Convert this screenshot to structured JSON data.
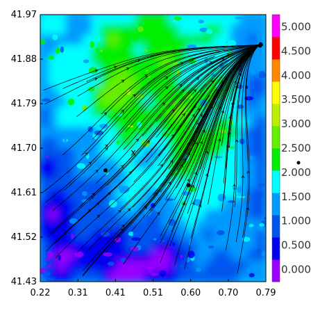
{
  "chart_data": {
    "type": "heatmap",
    "subtype": "vector-field-streamlines",
    "title": "",
    "xlabel": "",
    "ylabel": "",
    "xlim": [
      0.22,
      0.79
    ],
    "ylim": [
      41.43,
      41.97
    ],
    "x_ticks": [
      "0.22",
      "0.31",
      "0.41",
      "0.51",
      "0.60",
      "0.70",
      "0.79"
    ],
    "y_ticks": [
      "41.43",
      "41.52",
      "41.61",
      "41.70",
      "41.79",
      "41.88",
      "41.97"
    ],
    "x_tick_values": [
      0.22,
      0.315,
      0.41,
      0.505,
      0.6,
      0.695,
      0.79
    ],
    "y_tick_values": [
      41.43,
      41.52,
      41.61,
      41.7,
      41.79,
      41.88,
      41.97
    ],
    "colorbar": {
      "labels": [
        "0.000",
        "0.500",
        "1.000",
        "1.500",
        "2.000",
        "2.500",
        "3.000",
        "3.500",
        "4.000",
        "4.500",
        "5.000"
      ],
      "values": [
        0.0,
        0.5,
        1.0,
        1.5,
        2.0,
        2.5,
        3.0,
        3.5,
        4.0,
        4.5,
        5.0
      ],
      "range": [
        -0.25,
        5.25
      ],
      "colors": [
        "#9900ff",
        "#0000ee",
        "#0055ee",
        "#0099ff",
        "#00ffff",
        "#00ee00",
        "#66ee00",
        "#bbee00",
        "#ffff00",
        "#ff8800",
        "#ff0000",
        "#ff00ff"
      ]
    },
    "markers": [
      {
        "x": 0.385,
        "y": 41.655
      },
      {
        "x": 0.595,
        "y": 41.625
      }
    ],
    "annotations": [
      {
        "text": "x",
        "x": 0.455,
        "y": 41.685
      }
    ],
    "colorbar_marker": {
      "value": 2.2
    },
    "grid": false,
    "legend": "colorbar-right"
  }
}
